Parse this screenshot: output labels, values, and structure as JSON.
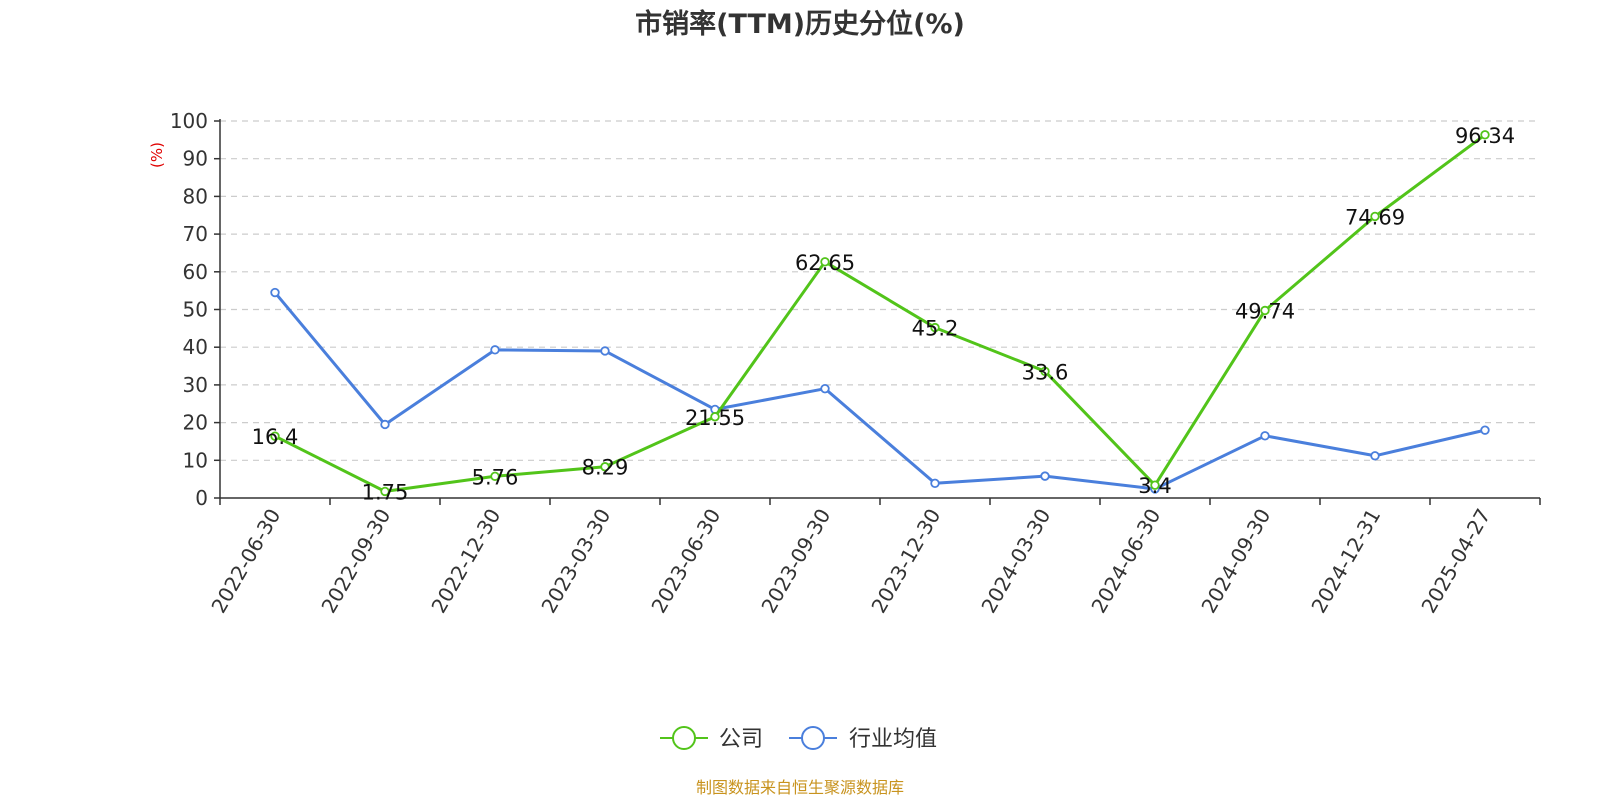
{
  "colors": {
    "company": "#52c41a",
    "industry": "#4a7fdc",
    "ylabel": "#e00000",
    "footer": "#c8931e",
    "grid": "#cccccc",
    "axis": "#333333"
  },
  "footer": "制图数据来自恒生聚源数据库",
  "chart_data": {
    "type": "line",
    "title": "市销率(TTM)历史分位(%)",
    "ylabel": "(%)",
    "xlabel": "",
    "ylim": [
      0,
      100
    ],
    "yticks": [
      0,
      10,
      20,
      30,
      40,
      50,
      60,
      70,
      80,
      90,
      100
    ],
    "grid": true,
    "legend_position": "bottom-center",
    "categories": [
      "2022-06-30",
      "2022-09-30",
      "2022-12-30",
      "2023-03-30",
      "2023-06-30",
      "2023-09-30",
      "2023-12-30",
      "2024-03-30",
      "2024-06-30",
      "2024-09-30",
      "2024-12-31",
      "2025-04-27"
    ],
    "series": [
      {
        "name": "公司",
        "values": [
          16.4,
          1.75,
          5.76,
          8.29,
          21.55,
          62.65,
          45.2,
          33.6,
          3.4,
          49.74,
          74.69,
          96.34
        ],
        "labels": [
          "16.4",
          "1.75",
          "5.76",
          "8.29",
          "21.55",
          "62.65",
          "45.2",
          "33.6",
          "3.4",
          "49.74",
          "74.69",
          "96.34"
        ]
      },
      {
        "name": "行业均值",
        "values": [
          54.5,
          19.5,
          39.3,
          39.0,
          23.5,
          29.0,
          3.9,
          5.8,
          2.4,
          16.5,
          11.2,
          18.0
        ]
      }
    ]
  }
}
